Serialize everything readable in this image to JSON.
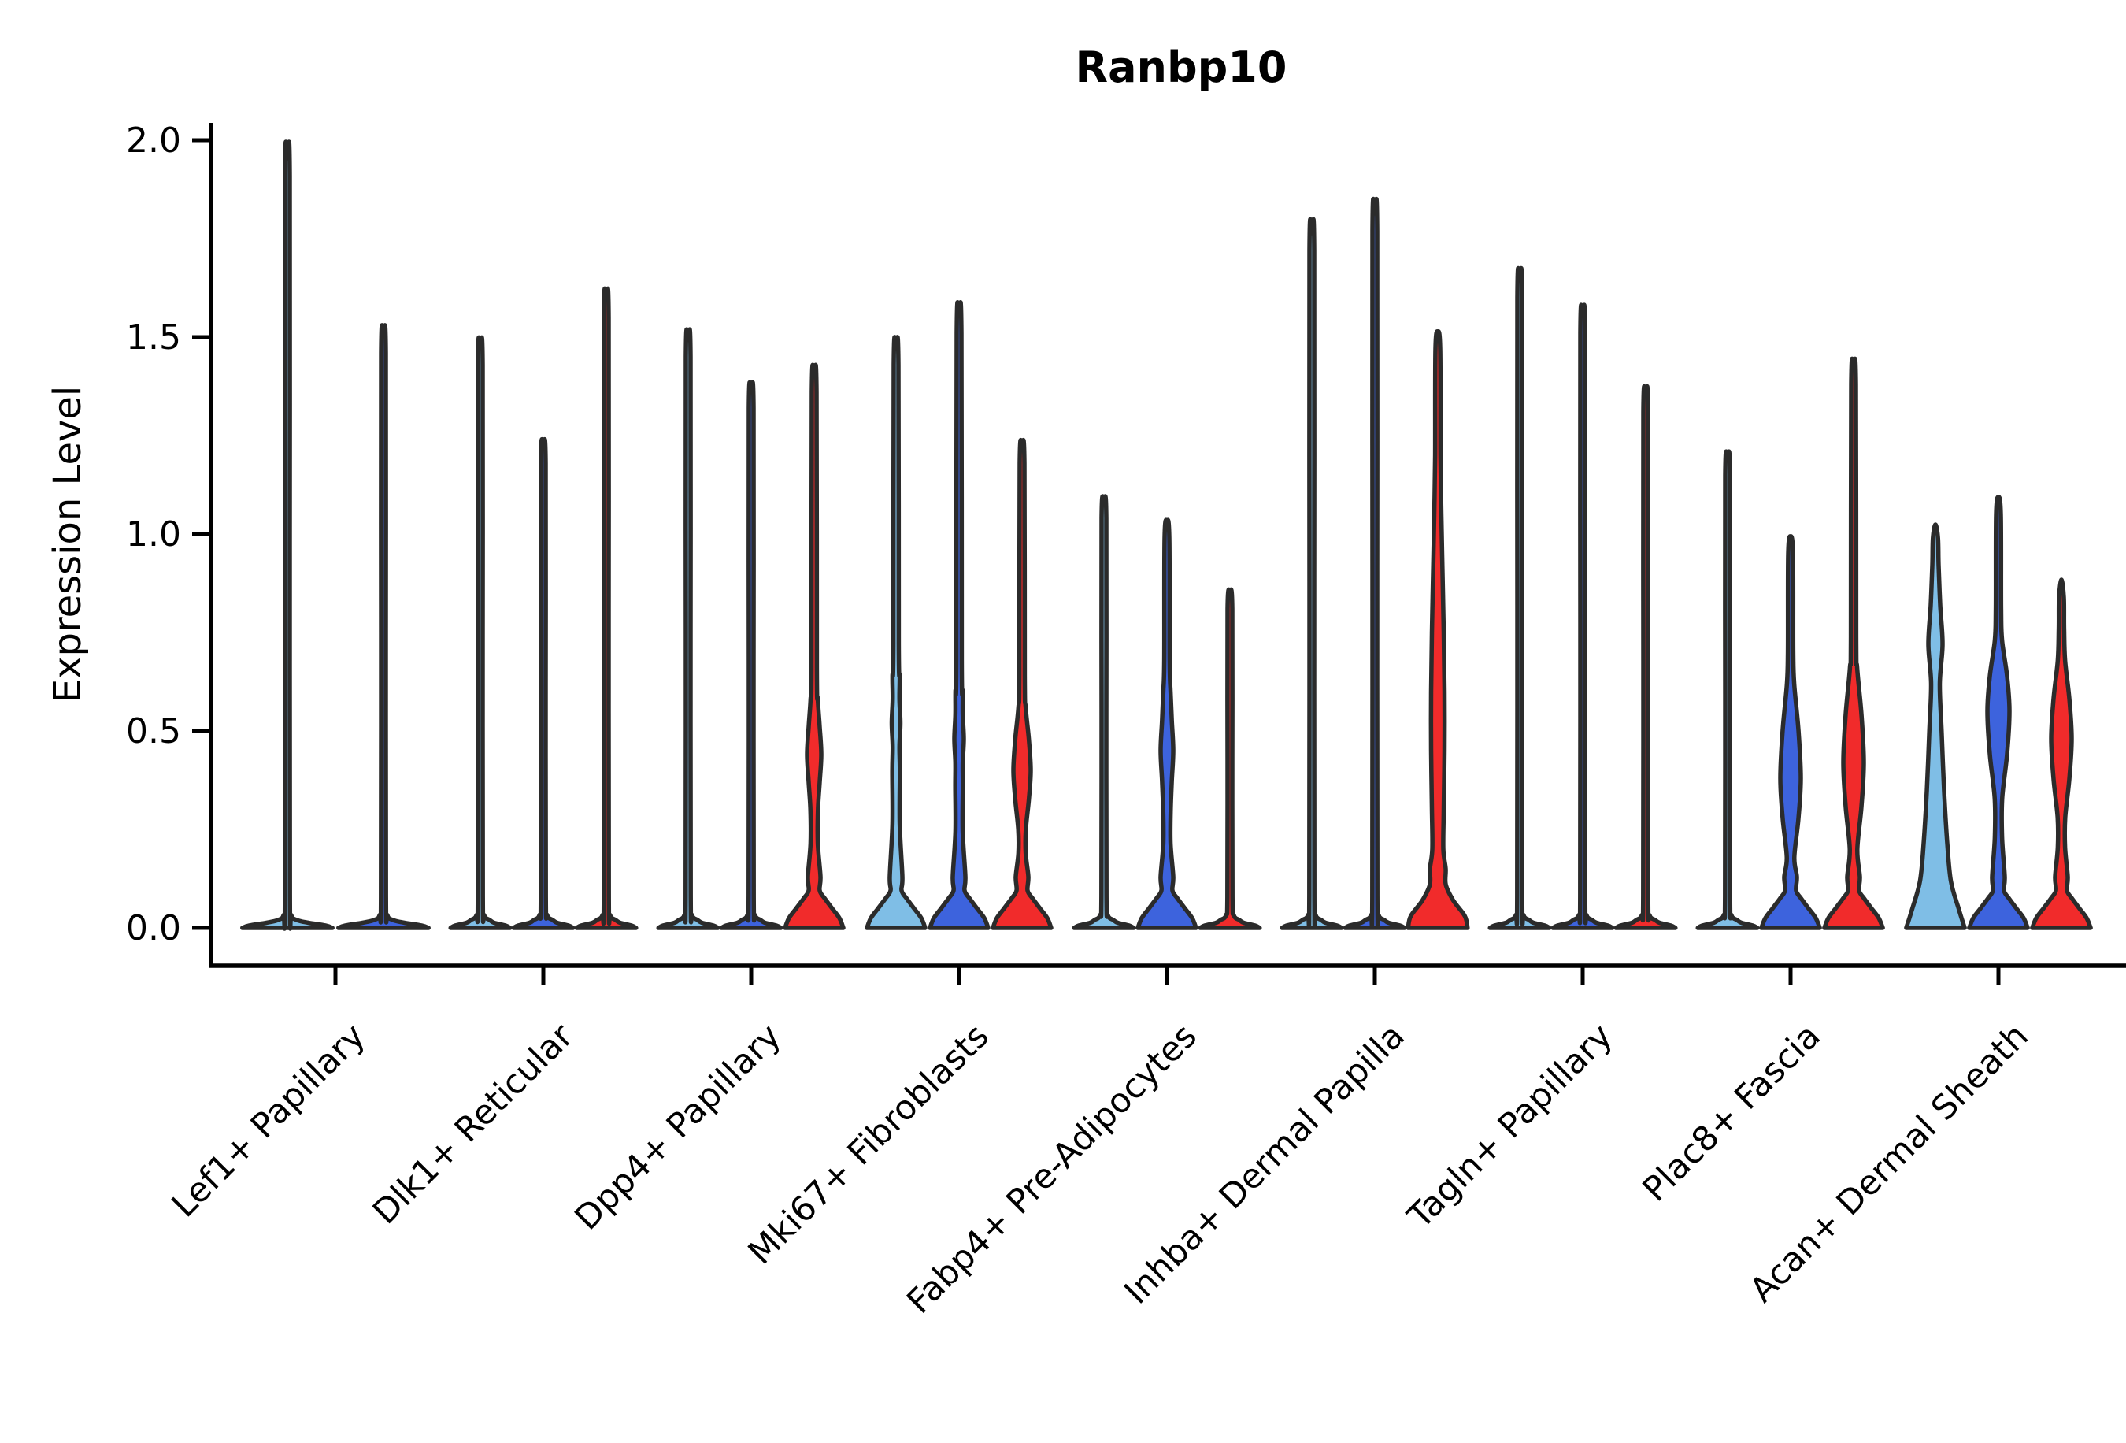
{
  "figure": {
    "title": "Ranbp10",
    "y_axis": {
      "label": "Expression Level",
      "ticks": [
        0.0,
        0.5,
        1.0,
        1.5,
        2.0
      ],
      "range": [
        -0.09,
        2.05
      ]
    },
    "x_axis": {
      "label": ""
    }
  },
  "palette": {
    "lightblue": "#7FBEE6",
    "blue": "#3D63DD",
    "red": "#F12B2B",
    "outline": "#2B2B2B",
    "axis": "#000000"
  },
  "chart_data": {
    "type": "violin",
    "title": "Ranbp10",
    "xlabel": "",
    "ylabel": "Expression Level",
    "ylim": [
      -0.09,
      2.05
    ],
    "yticks": [
      0.0,
      0.5,
      1.0,
      1.5,
      2.0
    ],
    "grid": false,
    "legend": "none",
    "categories": [
      "Lef1+ Papillary",
      "Dlk1+ Reticular",
      "Dpp4+ Papillary",
      "Mki67+ Fibroblasts",
      "Fabp4+ Pre-Adipocytes",
      "Inhba+ Dermal Papilla",
      "Tagln+ Papillary",
      "Plac8+ Fascia",
      "Acan+ Dermal Sheath"
    ],
    "groups": [
      {
        "label": "Lef1+ Papillary",
        "violins": [
          {
            "color": "lightblue",
            "max": 1.95,
            "shape": "flat"
          },
          {
            "color": "blue",
            "max": 1.5,
            "shape": "flat"
          }
        ]
      },
      {
        "label": "Dlk1+ Reticular",
        "violins": [
          {
            "color": "lightblue",
            "max": 1.47,
            "shape": "flat"
          },
          {
            "color": "blue",
            "max": 1.22,
            "shape": "flat"
          },
          {
            "color": "red",
            "max": 1.59,
            "shape": "flat"
          }
        ]
      },
      {
        "label": "Dpp4+ Papillary",
        "violins": [
          {
            "color": "lightblue",
            "max": 1.49,
            "shape": "flat"
          },
          {
            "color": "blue",
            "max": 1.36,
            "shape": "flat"
          },
          {
            "color": "red",
            "max": 1.4,
            "shape": "bell-bulge",
            "bulge": [
              0.3,
              0.44,
              0.58
            ],
            "bulge_halfwidth": 9
          }
        ]
      },
      {
        "label": "Mki67+ Fibroblasts",
        "violins": [
          {
            "color": "lightblue",
            "max": 1.47,
            "shape": "bell-bulge",
            "bulge": [
              0.4,
              0.52,
              0.64
            ],
            "bulge_halfwidth": 5.5
          },
          {
            "color": "blue",
            "max": 1.55,
            "shape": "bell-bulge",
            "bulge": [
              0.36,
              0.48,
              0.6
            ],
            "bulge_halfwidth": 6
          },
          {
            "color": "red",
            "max": 1.22,
            "shape": "bell-bulge",
            "bulge": [
              0.25,
              0.4,
              0.56
            ],
            "bulge_halfwidth": 11
          }
        ]
      },
      {
        "label": "Fabp4+ Pre-Adipocytes",
        "violins": [
          {
            "color": "lightblue",
            "max": 1.08,
            "shape": "flat"
          },
          {
            "color": "blue",
            "max": 1.03,
            "shape": "bell-bulge",
            "bulge": [
              0.3,
              0.45,
              0.6
            ],
            "bulge_halfwidth": 8
          },
          {
            "color": "red",
            "max": 0.85,
            "shape": "flat"
          }
        ]
      },
      {
        "label": "Inhba+ Dermal Papilla",
        "violins": [
          {
            "color": "lightblue",
            "max": 1.76,
            "shape": "flat"
          },
          {
            "color": "blue",
            "max": 1.81,
            "shape": "flat"
          },
          {
            "color": "red",
            "max": 1.51,
            "shape": "tall-column"
          }
        ]
      },
      {
        "label": "Tagln+ Papillary",
        "violins": [
          {
            "color": "lightblue",
            "max": 1.64,
            "shape": "flat"
          },
          {
            "color": "blue",
            "max": 1.55,
            "shape": "flat"
          },
          {
            "color": "red",
            "max": 1.35,
            "shape": "flat"
          }
        ]
      },
      {
        "label": "Plac8+ Fascia",
        "violins": [
          {
            "color": "lightblue",
            "max": 1.19,
            "shape": "flat"
          },
          {
            "color": "blue",
            "max": 0.99,
            "shape": "bell-bulge",
            "bulge": [
              0.18,
              0.38,
              0.62
            ],
            "bulge_halfwidth": 13
          },
          {
            "color": "red",
            "max": 1.42,
            "shape": "bell-bulge",
            "bulge": [
              0.2,
              0.42,
              0.66
            ],
            "bulge_halfwidth": 13
          }
        ]
      },
      {
        "label": "Acan+ Dermal Sheath",
        "violins": [
          {
            "color": "lightblue",
            "max": 1.02,
            "shape": "wide-column"
          },
          {
            "color": "blue",
            "max": 1.09,
            "shape": "bell-bulge",
            "bulge": [
              0.33,
              0.55,
              0.73
            ],
            "bulge_halfwidth": 14
          },
          {
            "color": "red",
            "max": 0.88,
            "shape": "bell-bulge",
            "bulge": [
              0.28,
              0.48,
              0.68
            ],
            "bulge_halfwidth": 13
          }
        ]
      }
    ]
  }
}
